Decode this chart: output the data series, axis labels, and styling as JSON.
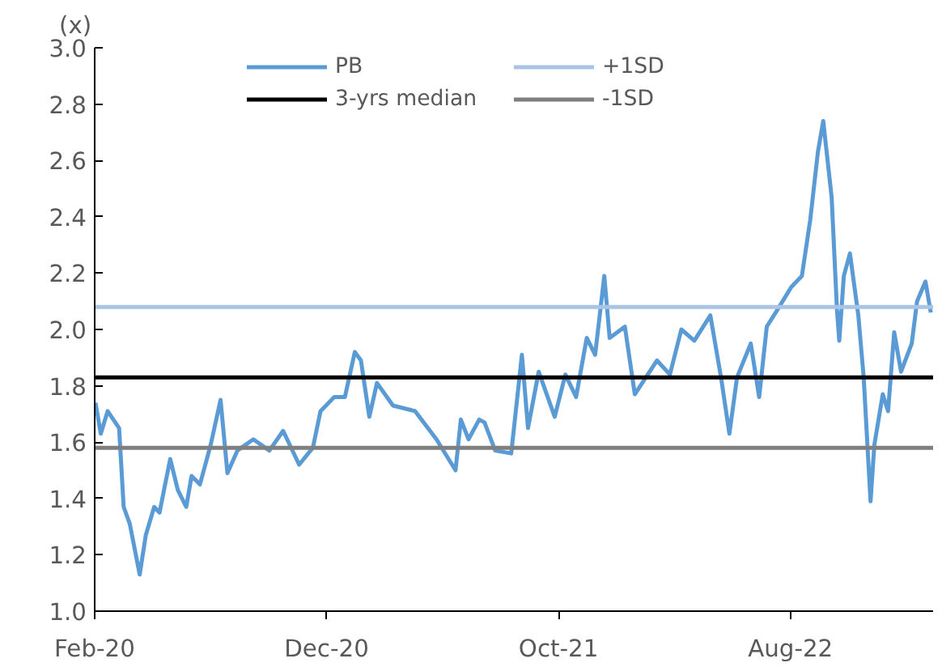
{
  "chart_data": {
    "type": "line",
    "ylabel": "(x)",
    "x": [
      "2020-02-02",
      "2020-02-09",
      "2020-02-18",
      "2020-03-04",
      "2020-03-10",
      "2020-03-18",
      "2020-03-31",
      "2020-04-08",
      "2020-04-19",
      "2020-04-26",
      "2020-05-10",
      "2020-05-20",
      "2020-05-31",
      "2020-06-07",
      "2020-06-18",
      "2020-07-02",
      "2020-07-15",
      "2020-07-24",
      "2020-08-06",
      "2020-08-27",
      "2020-09-17",
      "2020-10-05",
      "2020-10-26",
      "2020-11-13",
      "2020-11-23",
      "2020-12-11",
      "2020-12-25",
      "2021-01-07",
      "2021-01-15",
      "2021-01-26",
      "2021-02-05",
      "2021-02-26",
      "2021-03-27",
      "2021-04-24",
      "2021-05-19",
      "2021-05-26",
      "2021-06-05",
      "2021-06-19",
      "2021-06-26",
      "2021-07-10",
      "2021-07-31",
      "2021-08-14",
      "2021-08-22",
      "2021-09-05",
      "2021-09-26",
      "2021-10-10",
      "2021-10-24",
      "2021-11-07",
      "2021-11-18",
      "2021-11-30",
      "2021-12-07",
      "2021-12-27",
      "2022-01-09",
      "2022-02-07",
      "2022-02-24",
      "2022-03-11",
      "2022-03-28",
      "2022-04-18",
      "2022-05-02",
      "2022-05-13",
      "2022-05-23",
      "2022-06-10",
      "2022-06-21",
      "2022-07-01",
      "2022-07-15",
      "2022-08-02",
      "2022-08-16",
      "2022-08-27",
      "2022-09-06",
      "2022-09-13",
      "2022-09-24",
      "2022-10-01",
      "2022-10-04",
      "2022-10-10",
      "2022-10-18",
      "2022-10-29",
      "2022-11-05",
      "2022-11-14",
      "2022-11-19",
      "2022-11-30",
      "2022-12-07",
      "2022-12-15",
      "2022-12-24",
      "2023-01-07",
      "2023-01-14",
      "2023-01-25",
      "2023-02-01"
    ],
    "series": [
      {
        "name": "PB",
        "color": "#5b9bd5",
        "values": [
          1.74,
          1.63,
          1.71,
          1.65,
          1.37,
          1.31,
          1.13,
          1.27,
          1.37,
          1.35,
          1.54,
          1.43,
          1.37,
          1.48,
          1.45,
          1.59,
          1.75,
          1.49,
          1.57,
          1.61,
          1.57,
          1.64,
          1.52,
          1.58,
          1.71,
          1.76,
          1.76,
          1.92,
          1.89,
          1.69,
          1.81,
          1.73,
          1.71,
          1.61,
          1.5,
          1.68,
          1.61,
          1.68,
          1.67,
          1.57,
          1.56,
          1.91,
          1.65,
          1.85,
          1.69,
          1.84,
          1.76,
          1.97,
          1.91,
          2.19,
          1.97,
          2.01,
          1.77,
          1.89,
          1.84,
          2.0,
          1.96,
          2.05,
          1.83,
          1.63,
          1.83,
          1.95,
          1.76,
          2.01,
          2.07,
          2.15,
          2.19,
          2.39,
          2.63,
          2.74,
          2.47,
          2.07,
          1.96,
          2.19,
          2.27,
          2.05,
          1.83,
          1.39,
          1.59,
          1.77,
          1.71,
          1.99,
          1.85,
          1.95,
          2.1,
          2.17,
          2.06
        ]
      }
    ],
    "ref_lines": [
      {
        "axis": "y",
        "value": 1.83,
        "label": "3-yrs median",
        "color": "#000000"
      },
      {
        "axis": "y",
        "value": 2.08,
        "label": "+1SD",
        "color": "#a9c4e6"
      },
      {
        "axis": "y",
        "value": 1.58,
        "label": "-1SD",
        "color": "#7f7f7f"
      }
    ],
    "xlim": [
      "2020-02-01",
      "2023-02-04"
    ],
    "xticks": [
      {
        "value": "2020-02-01",
        "label": "Feb-20"
      },
      {
        "value": "2020-12-01",
        "label": "Dec-20"
      },
      {
        "value": "2021-10-01",
        "label": "Oct-21"
      },
      {
        "value": "2022-08-01",
        "label": "Aug-22"
      }
    ],
    "ylim": [
      1.0,
      3.0
    ],
    "yticks": [
      {
        "value": 1.0,
        "label": "1.0"
      },
      {
        "value": 1.2,
        "label": "1.2"
      },
      {
        "value": 1.4,
        "label": "1.4"
      },
      {
        "value": 1.6,
        "label": "1.6"
      },
      {
        "value": 1.8,
        "label": "1.8"
      },
      {
        "value": 2.0,
        "label": "2.0"
      },
      {
        "value": 2.2,
        "label": "2.2"
      },
      {
        "value": 2.4,
        "label": "2.4"
      },
      {
        "value": 2.6,
        "label": "2.6"
      },
      {
        "value": 2.8,
        "label": "2.8"
      },
      {
        "value": 3.0,
        "label": "3.0"
      }
    ],
    "grid": false,
    "legend": "top",
    "marker": "none",
    "line_style": "solid"
  }
}
